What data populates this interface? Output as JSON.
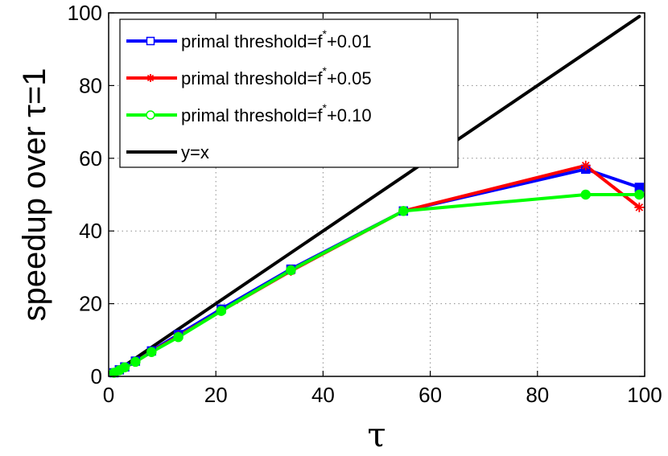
{
  "chart_data": {
    "type": "line",
    "title": "",
    "xlabel": "τ",
    "ylabel": "speedup over τ=1",
    "xlim": [
      0,
      100
    ],
    "ylim": [
      0,
      100
    ],
    "xticks": [
      "0",
      "20",
      "40",
      "60",
      "80",
      "100"
    ],
    "yticks": [
      "0",
      "20",
      "40",
      "60",
      "80",
      "100"
    ],
    "grid": true,
    "legend_position": "top-left",
    "series": [
      {
        "name": "primal threshold=f*+0.01",
        "legend_base": "primal threshold=f",
        "legend_sup": "*",
        "legend_suffix": "+0.01",
        "color": "#0000ff",
        "marker": "square",
        "x": [
          1,
          2,
          3,
          5,
          8,
          13,
          21,
          34,
          55,
          89,
          99
        ],
        "y": [
          1,
          1.8,
          2.6,
          4.2,
          7,
          11.5,
          18.5,
          29.5,
          45.5,
          57,
          52
        ]
      },
      {
        "name": "primal threshold=f*+0.05",
        "legend_base": "primal threshold=f",
        "legend_sup": "*",
        "legend_suffix": "+0.05",
        "color": "#ff0000",
        "marker": "asterisk",
        "x": [
          1,
          2,
          3,
          5,
          8,
          13,
          21,
          34,
          55,
          89,
          99
        ],
        "y": [
          1,
          1.7,
          2.5,
          4,
          6.8,
          11,
          18,
          29,
          45.5,
          58,
          46.5
        ]
      },
      {
        "name": "primal threshold=f*+0.10",
        "legend_base": "primal threshold=f",
        "legend_sup": "*",
        "legend_suffix": "+0.10",
        "color": "#00ff00",
        "marker": "circle",
        "x": [
          1,
          2,
          3,
          5,
          8,
          13,
          21,
          34,
          55,
          89,
          99
        ],
        "y": [
          1,
          1.7,
          2.5,
          4,
          6.7,
          10.8,
          18,
          29.2,
          45.5,
          50,
          50
        ]
      },
      {
        "name": "y=x",
        "legend_base": "y=x",
        "legend_sup": "",
        "legend_suffix": "",
        "color": "#000000",
        "marker": "none",
        "x": [
          1,
          99
        ],
        "y": [
          1,
          99
        ]
      }
    ]
  }
}
